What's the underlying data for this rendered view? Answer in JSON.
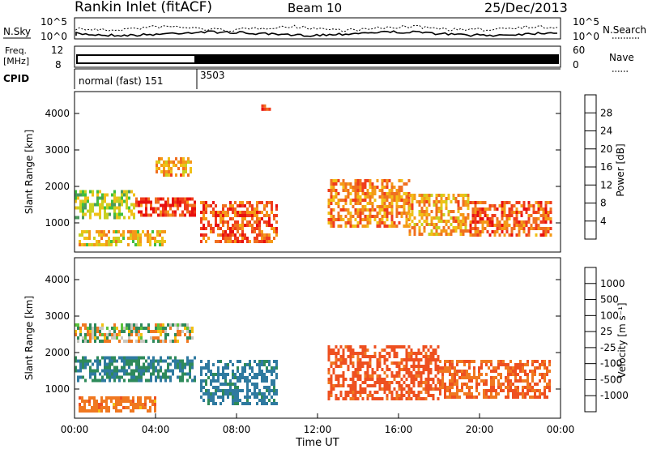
{
  "header": {
    "station": "Rankin Inlet (fitACF)",
    "beam": "Beam 10",
    "date": "25/Dec/2013"
  },
  "strip": {
    "nsky_label": "N.Sky",
    "nsearch_label": "N.Search",
    "log_top": "10^5",
    "log_bottom": "10^0",
    "freq_label_1": "Freq.",
    "freq_label_2": "[MHz]",
    "freq_top": "12",
    "freq_bottom": "8",
    "nave_label": "Nave",
    "nave_top": "60",
    "nave_bottom": "0",
    "cpid_label": "CPID",
    "cpid_segments": [
      {
        "text": "normal (fast) 151",
        "start_hour": 0,
        "end_hour": 6.1
      },
      {
        "text": "3503",
        "start_hour": 6.1,
        "end_hour": 24
      }
    ]
  },
  "chart_data": [
    {
      "type": "heatmap",
      "panel": "power",
      "xlabel": "",
      "ylabel": "Slant Range [km]",
      "xlim": [
        0,
        24
      ],
      "ylim": [
        200,
        4600
      ],
      "yticks": [
        "1000",
        "2000",
        "3000",
        "4000"
      ],
      "colorbar": {
        "label": "Power [dB]",
        "ticks": [
          "4",
          "8",
          "12",
          "16",
          "20",
          "24",
          "28"
        ],
        "colors": [
          "#1a1af0",
          "#2a4fc8",
          "#2c7a7a",
          "#4b9a5c",
          "#3fbf3f",
          "#c8d020",
          "#f0c018",
          "#f59a18",
          "#f07020",
          "#f03c1c",
          "#e81010"
        ]
      },
      "echo_regions": [
        {
          "hours": [
            0.0,
            3.0
          ],
          "range_km": [
            1100,
            1900
          ],
          "value": 14
        },
        {
          "hours": [
            0.2,
            4.5
          ],
          "range_km": [
            400,
            800
          ],
          "value": 18
        },
        {
          "hours": [
            3.0,
            6.0
          ],
          "range_km": [
            1200,
            1700
          ],
          "value": 26
        },
        {
          "hours": [
            4.0,
            5.8
          ],
          "range_km": [
            2300,
            2800
          ],
          "value": 20
        },
        {
          "hours": [
            6.2,
            10.0
          ],
          "range_km": [
            500,
            1600
          ],
          "value": 24
        },
        {
          "hours": [
            9.1,
            9.6
          ],
          "range_km": [
            4000,
            4250
          ],
          "value": 26
        },
        {
          "hours": [
            12.5,
            16.5
          ],
          "range_km": [
            900,
            2200
          ],
          "value": 22
        },
        {
          "hours": [
            16.5,
            19.5
          ],
          "range_km": [
            700,
            1800
          ],
          "value": 20
        },
        {
          "hours": [
            19.5,
            23.5
          ],
          "range_km": [
            700,
            1600
          ],
          "value": 24
        }
      ]
    },
    {
      "type": "heatmap",
      "panel": "velocity",
      "xlabel": "Time UT",
      "ylabel": "Slant Range [km]",
      "xlim": [
        0,
        24
      ],
      "ylim": [
        200,
        4600
      ],
      "xticks": [
        "00:00",
        "04:00",
        "08:00",
        "12:00",
        "16:00",
        "20:00",
        "00:00"
      ],
      "yticks": [
        "1000",
        "2000",
        "3000",
        "4000"
      ],
      "colorbar": {
        "label": "Velocity [m s⁻¹]",
        "ticks": [
          "1000",
          "500",
          "100",
          "25",
          "-25",
          "-100",
          "-500",
          "-1000"
        ],
        "colors": [
          "#1e3ab8",
          "#2f7aa0",
          "#2e8a5a",
          "#5bc23c",
          "#c8c8c0",
          "#f2c010",
          "#f07820",
          "#ee5020",
          "#e81010"
        ]
      },
      "echo_regions": [
        {
          "hours": [
            0.0,
            6.0
          ],
          "range_km": [
            1200,
            1900
          ],
          "value": 300
        },
        {
          "hours": [
            0.0,
            5.8
          ],
          "range_km": [
            2300,
            2800
          ],
          "value": 0
        },
        {
          "hours": [
            0.2,
            4.0
          ],
          "range_km": [
            400,
            800
          ],
          "value": -200
        },
        {
          "hours": [
            6.2,
            10.0
          ],
          "range_km": [
            600,
            1800
          ],
          "value": 400
        },
        {
          "hours": [
            12.5,
            18.0
          ],
          "range_km": [
            700,
            2200
          ],
          "value": -400
        },
        {
          "hours": [
            18.0,
            23.5
          ],
          "range_km": [
            800,
            1800
          ],
          "value": -300
        }
      ]
    }
  ]
}
